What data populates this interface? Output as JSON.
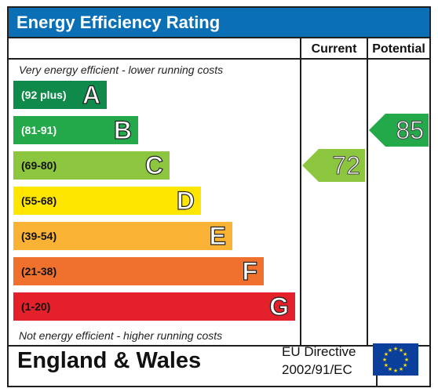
{
  "header": {
    "title": "Energy Efficiency Rating"
  },
  "columns": {
    "current": "Current",
    "potential": "Potential"
  },
  "captions": {
    "top": "Very energy efficient - lower running costs",
    "bottom": "Not energy efficient - higher running costs"
  },
  "footer": {
    "region": "England & Wales",
    "directive_line1": "EU Directive",
    "directive_line2": "2002/91/EC",
    "flag_icon": "eu-flag-icon"
  },
  "chart_data": {
    "type": "bar",
    "title": "Energy Efficiency Rating",
    "bands": [
      {
        "range": "(92 plus)",
        "letter": "A",
        "color": "#0f8a4a",
        "text_color": "#ffffff"
      },
      {
        "range": "(81-91)",
        "letter": "B",
        "color": "#23a84a",
        "text_color": "#ffffff"
      },
      {
        "range": "(69-80)",
        "letter": "C",
        "color": "#8cc63f",
        "text_color": "#111111"
      },
      {
        "range": "(55-68)",
        "letter": "D",
        "color": "#ffe600",
        "text_color": "#111111"
      },
      {
        "range": "(39-54)",
        "letter": "E",
        "color": "#f9b233",
        "text_color": "#111111"
      },
      {
        "range": "(21-38)",
        "letter": "F",
        "color": "#f0712d",
        "text_color": "#111111"
      },
      {
        "range": "(1-20)",
        "letter": "G",
        "color": "#e4202b",
        "text_color": "#111111"
      }
    ],
    "current": {
      "value": 72,
      "band": "C",
      "color": "#8cc63f"
    },
    "potential": {
      "value": 85,
      "band": "B",
      "color": "#23a84a"
    }
  }
}
